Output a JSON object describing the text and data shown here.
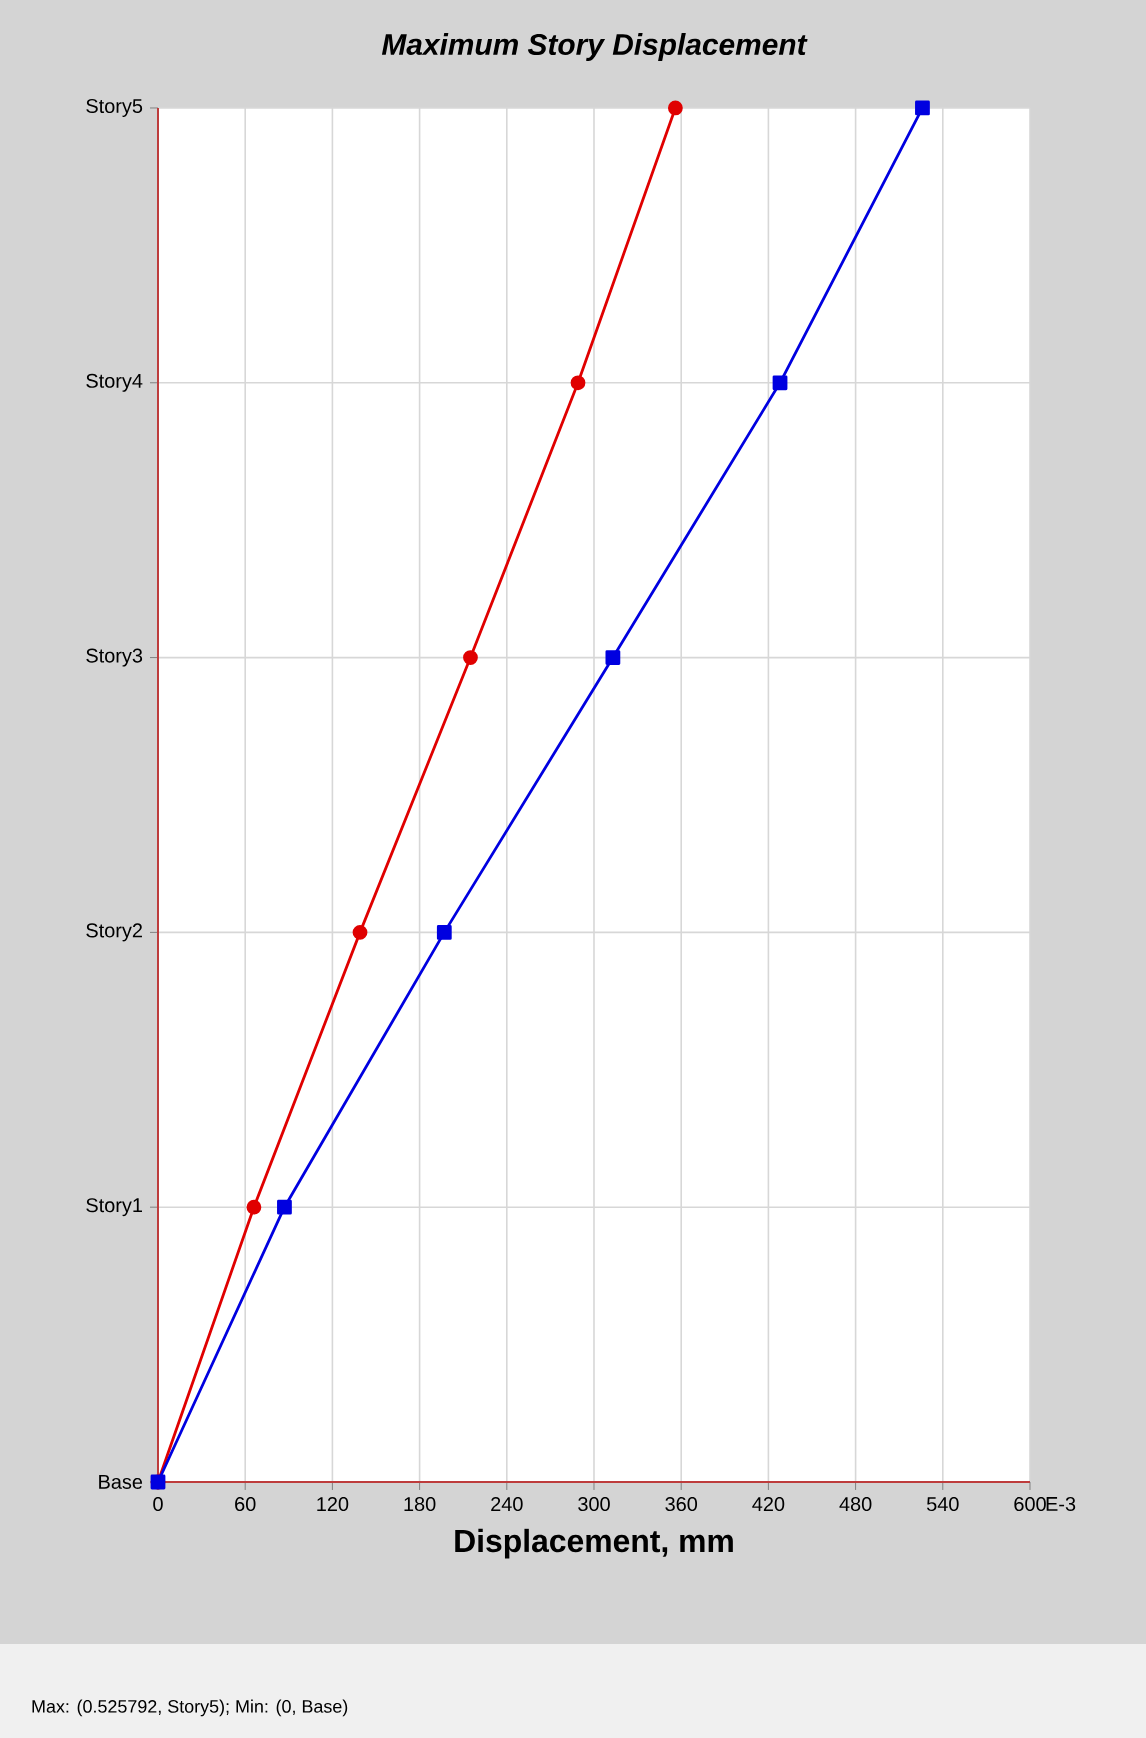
{
  "chart_data": {
    "type": "line",
    "orientation": "horizontal",
    "title": "Maximum Story Displacement",
    "xlabel": "Displacement, mm",
    "categories": [
      "Story5",
      "Story4",
      "Story3",
      "Story2",
      "Story1",
      "Base"
    ],
    "series": [
      {
        "color": "#e00000",
        "marker": "circle",
        "values": [
          356,
          289,
          215,
          139,
          66,
          0
        ]
      },
      {
        "color": "#0000e0",
        "marker": "square",
        "values": [
          526,
          428,
          313,
          197,
          87,
          0
        ]
      }
    ],
    "xlim": [
      0,
      600
    ],
    "xticks": [
      0,
      60,
      120,
      180,
      240,
      300,
      360,
      420,
      480,
      540,
      600
    ],
    "grid": true,
    "line_style": "solid",
    "annotations": [
      "E-3",
      "Max: (0.525792, Story5);   Min: (0, Base)"
    ]
  }
}
